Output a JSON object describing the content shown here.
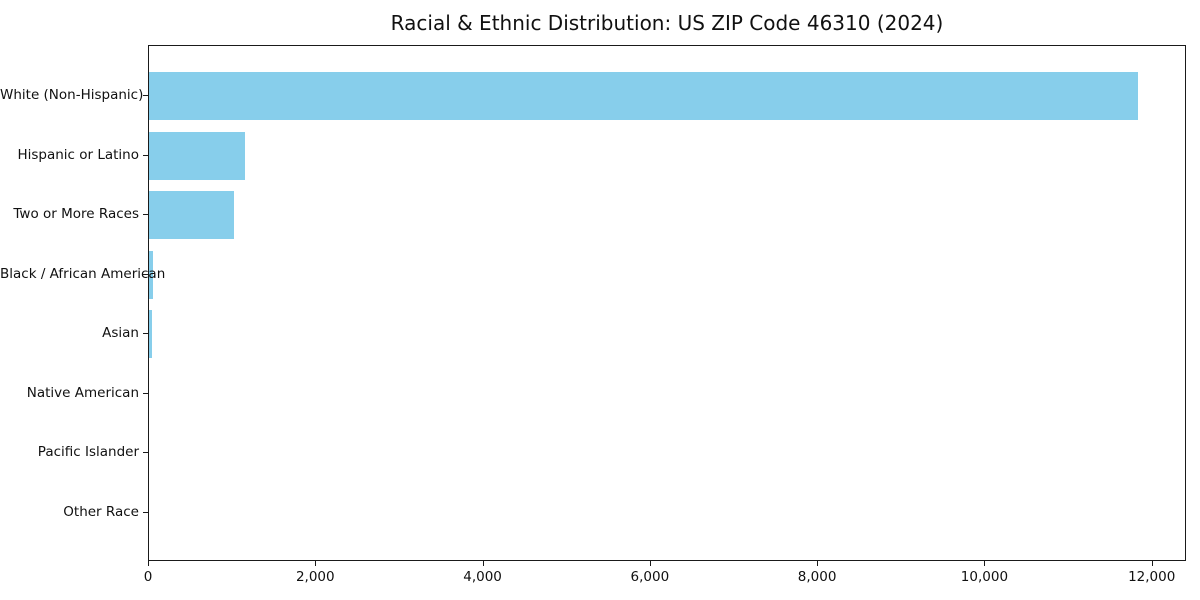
{
  "chart_data": {
    "type": "bar",
    "orientation": "horizontal",
    "title": "Racial & Ethnic Distribution: US ZIP Code 46310 (2024)",
    "categories": [
      "White (Non-Hispanic)",
      "Hispanic or Latino",
      "Two or More Races",
      "Black / African American",
      "Asian",
      "Native American",
      "Pacific Islander",
      "Other Race"
    ],
    "values": [
      11820,
      1150,
      1020,
      52,
      38,
      0,
      0,
      0
    ],
    "xlabel": "",
    "ylabel": "",
    "xlim": [
      0,
      12410
    ],
    "xticks": [
      0,
      2000,
      4000,
      6000,
      8000,
      10000,
      12000
    ],
    "xtick_labels": [
      "0",
      "2,000",
      "4,000",
      "6,000",
      "8,000",
      "10,000",
      "12,000"
    ],
    "grid": false,
    "legend": null,
    "bar_color": "#87CEEB"
  },
  "colors": {
    "bar": "#87CEEB",
    "spine": "#1a1a1a",
    "text": "#111111",
    "background": "#ffffff"
  }
}
